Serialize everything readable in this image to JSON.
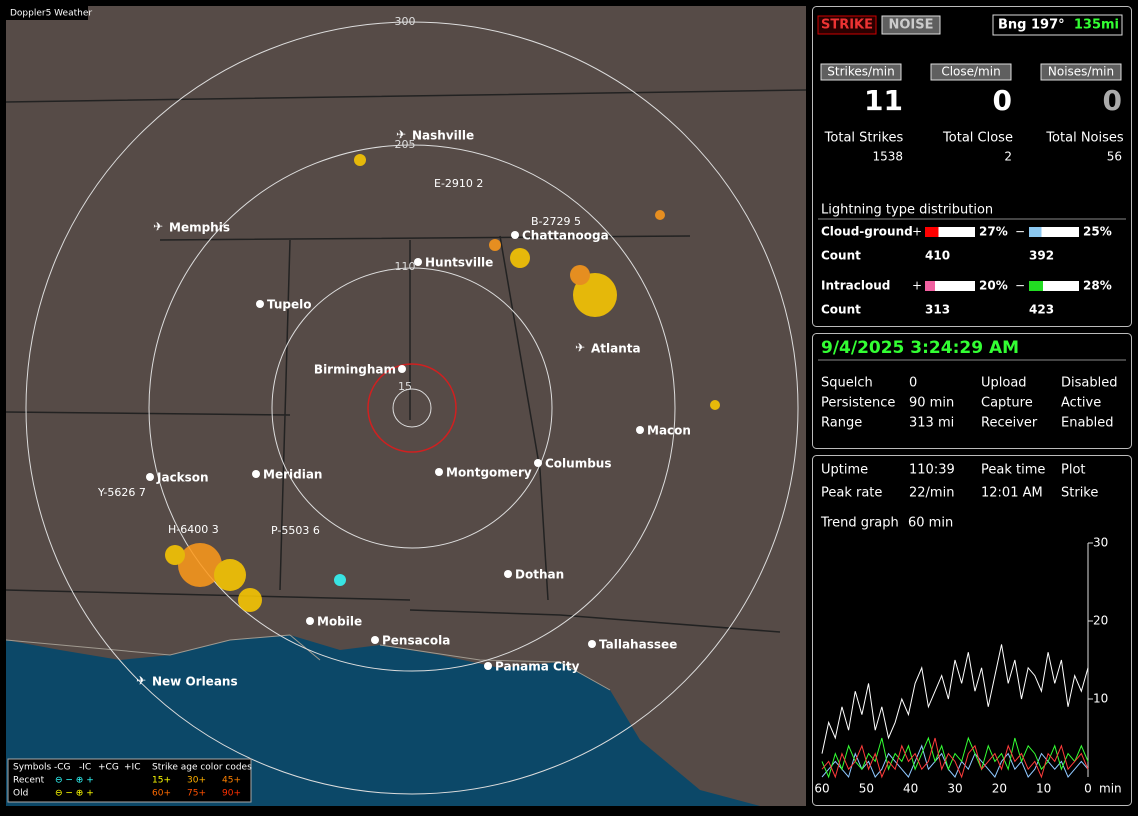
{
  "app_title": "Doppler5 Weather",
  "map": {
    "range_rings": [
      "300",
      "205",
      "110",
      "15"
    ],
    "cities": [
      "Nashville",
      "Memphis",
      "Huntsville",
      "Chattanooga",
      "Tupelo",
      "Atlanta",
      "Birmingham",
      "Macon",
      "Jackson",
      "Meridian",
      "Montgomery",
      "Columbus",
      "Dothan",
      "Mobile",
      "Pensacola",
      "Tallahassee",
      "Panama City",
      "New Orleans"
    ],
    "storms": [
      "E-2910 2",
      "B-2729 5",
      "Y-5626 7",
      "H-6400 3",
      "P-5503 6"
    ],
    "legend": {
      "symbols": "Symbols",
      "types": [
        "-CG",
        "-IC",
        "+CG",
        "+IC"
      ],
      "age_title": "Strike age color codes",
      "rows": [
        "Recent",
        "Old"
      ],
      "recent_ages": [
        "15+",
        "30+",
        "45+"
      ],
      "old_ages": [
        "60+",
        "75+",
        "90+"
      ]
    }
  },
  "header": {
    "strike": "STRIKE",
    "noise": "NOISE",
    "bearing": "Bng 197°",
    "distance": "135mi"
  },
  "rates": {
    "labels": [
      "Strikes/min",
      "Close/min",
      "Noises/min"
    ],
    "values": [
      11,
      0,
      0
    ]
  },
  "totals": {
    "labels": [
      "Total Strikes",
      "Total Close",
      "Total Noises"
    ],
    "values": [
      1538,
      2,
      56
    ]
  },
  "distribution": {
    "title": "Lightning type distribution",
    "count_label": "Count",
    "rows": [
      {
        "name": "Cloud-ground",
        "pos_percent": 27,
        "pos_label": "27%",
        "neg_percent": 25,
        "neg_label": "25%",
        "pos_count": 410,
        "neg_count": 392
      },
      {
        "name": "Intracloud",
        "pos_percent": 20,
        "pos_label": "20%",
        "neg_percent": 28,
        "neg_label": "28%",
        "pos_count": 313,
        "neg_count": 423
      }
    ],
    "signs": [
      "+",
      "−"
    ]
  },
  "status": {
    "datetime": "9/4/2025 3:24:29 AM",
    "rows": [
      [
        "Squelch",
        "0",
        "Upload",
        "Disabled"
      ],
      [
        "Persistence",
        "90 min",
        "Capture",
        "Active"
      ],
      [
        "Range",
        "313 mi",
        "Receiver",
        "Enabled"
      ]
    ]
  },
  "stats": {
    "rows": [
      [
        "Uptime",
        "110:39",
        "Peak time",
        "Plot"
      ],
      [
        "Peak rate",
        "22/min",
        "12:01 AM",
        "Strike"
      ]
    ],
    "trend_label": "Trend graph",
    "trend_span": "60 min"
  },
  "chart_data": {
    "type": "line",
    "xlim": [
      60,
      0
    ],
    "xticks": [
      60,
      50,
      40,
      30,
      20,
      10,
      0
    ],
    "x_unit": "min",
    "ylim": [
      0,
      30
    ],
    "yticks": [
      10,
      20,
      30
    ],
    "x": [
      60,
      58.5,
      57,
      55.5,
      54,
      52.5,
      51,
      49.5,
      48,
      46.5,
      45,
      43.5,
      42,
      40.5,
      39,
      37.5,
      36,
      34.5,
      33,
      31.5,
      30,
      28.5,
      27,
      25.5,
      24,
      22.5,
      21,
      19.5,
      18,
      16.5,
      15,
      13.5,
      12,
      10.5,
      9,
      7.5,
      6,
      4.5,
      3,
      1.5,
      0
    ],
    "series": [
      {
        "color": "#ffffff",
        "values": [
          3,
          7,
          5,
          9,
          6,
          11,
          8,
          12,
          6,
          9,
          5,
          7,
          10,
          8,
          12,
          14,
          9,
          11,
          13,
          10,
          15,
          12,
          16,
          11,
          14,
          9,
          13,
          17,
          12,
          15,
          10,
          14,
          13,
          11,
          16,
          12,
          15,
          9,
          13,
          11,
          14
        ]
      },
      {
        "color": "#ff3b3b",
        "values": [
          1,
          2,
          0,
          3,
          1,
          2,
          4,
          1,
          3,
          0,
          2,
          1,
          4,
          2,
          3,
          1,
          2,
          5,
          1,
          3,
          2,
          0,
          3,
          4,
          1,
          2,
          3,
          1,
          4,
          2,
          3,
          1,
          2,
          0,
          3,
          2,
          4,
          1,
          2,
          3,
          1
        ]
      },
      {
        "color": "#33ff33",
        "values": [
          2,
          0,
          3,
          1,
          4,
          2,
          1,
          3,
          2,
          5,
          1,
          3,
          2,
          4,
          1,
          3,
          5,
          2,
          4,
          1,
          3,
          2,
          5,
          3,
          1,
          4,
          2,
          3,
          1,
          5,
          2,
          4,
          3,
          1,
          2,
          4,
          1,
          3,
          2,
          4,
          2
        ]
      },
      {
        "color": "#8fc8ff",
        "values": [
          0,
          1,
          2,
          1,
          0,
          3,
          1,
          2,
          0,
          1,
          3,
          2,
          1,
          0,
          2,
          4,
          1,
          2,
          3,
          1,
          0,
          2,
          1,
          3,
          2,
          1,
          0,
          2,
          3,
          1,
          2,
          0,
          1,
          3,
          2,
          1,
          2,
          0,
          1,
          2,
          1
        ]
      }
    ]
  }
}
